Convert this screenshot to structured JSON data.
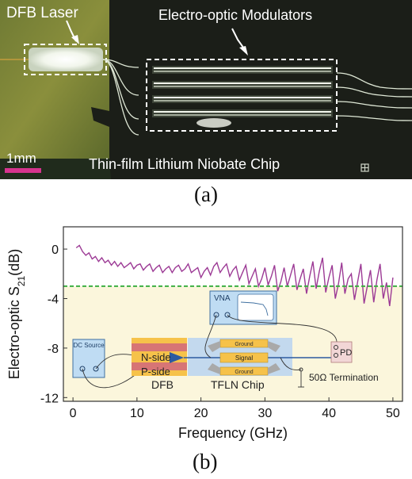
{
  "figure": {
    "caption_a": "(a)",
    "caption_b": "(b)"
  },
  "panel_a": {
    "label_laser": "DFB Laser",
    "label_modulators": "Electro-optic Modulators",
    "label_chip": "Thin-film Lithium Niobate Chip",
    "scale_bar": "1mm",
    "colors": {
      "background": "#1b1e18",
      "scale_bar": "#d6338e",
      "waveguide": "#e8f0e0"
    }
  },
  "panel_b": {
    "inset": {
      "vna": "VNA",
      "dc_source": "DC Source",
      "n_side": "N-side",
      "p_side": "P-side",
      "dfb": "DFB",
      "tfln": "TFLN Chip",
      "ground_top": "Ground",
      "signal": "Signal",
      "ground_bottom": "Ground",
      "pd": "PD",
      "termination": "50Ω Termination"
    }
  },
  "chart_data": {
    "type": "line",
    "xlabel": "Frequency (GHz)",
    "ylabel": "Electro-optic S21(dB)",
    "xlim": [
      -1.5,
      51.5
    ],
    "ylim": [
      -12.3,
      1.8
    ],
    "xticks": [
      0,
      10,
      20,
      30,
      40,
      50
    ],
    "yticks": [
      0,
      -4,
      -8,
      -12
    ],
    "reference_line": {
      "y": -3,
      "style": "dashed",
      "color": "#3cb043"
    },
    "shaded_region_below": {
      "y": -3,
      "color": "#fbf6dc"
    },
    "series": [
      {
        "color": "#9c3a95",
        "x": [
          0.5,
          1,
          1.5,
          2,
          2.5,
          3,
          3.5,
          4,
          4.5,
          5,
          5.5,
          6,
          6.5,
          7,
          7.5,
          8,
          8.5,
          9,
          9.5,
          10,
          10.5,
          11,
          11.5,
          12,
          12.5,
          13,
          13.5,
          14,
          14.5,
          15,
          15.5,
          16,
          16.5,
          17,
          17.5,
          18,
          18.5,
          19,
          19.5,
          20,
          20.5,
          21,
          21.5,
          22,
          22.5,
          23,
          23.5,
          24,
          24.5,
          25,
          25.5,
          26,
          26.5,
          27,
          27.5,
          28,
          28.5,
          29,
          29.5,
          30,
          30.5,
          31,
          31.5,
          32,
          32.5,
          33,
          33.5,
          34,
          34.5,
          35,
          35.5,
          36,
          36.5,
          37,
          37.5,
          38,
          38.5,
          39,
          39.5,
          40,
          40.5,
          41,
          41.5,
          42,
          42.5,
          43,
          43.5,
          44,
          44.5,
          45,
          45.5,
          46,
          46.5,
          47,
          47.5,
          48,
          48.5,
          49,
          49.5,
          50
        ],
        "y": [
          0.1,
          0.3,
          -0.2,
          -0.5,
          -0.3,
          -0.8,
          -0.6,
          -1.0,
          -0.7,
          -1.1,
          -0.9,
          -1.3,
          -1.0,
          -1.4,
          -1.1,
          -1.5,
          -1.3,
          -1.1,
          -1.6,
          -1.3,
          -1.2,
          -1.7,
          -1.4,
          -1.2,
          -1.8,
          -1.5,
          -1.3,
          -1.9,
          -1.6,
          -1.4,
          -1.9,
          -1.5,
          -1.3,
          -1.8,
          -1.6,
          -1.2,
          -1.9,
          -1.7,
          -1.5,
          -2.3,
          -1.8,
          -1.5,
          -2.1,
          -1.4,
          -1.1,
          -1.9,
          -1.5,
          -1.2,
          -2.2,
          -1.7,
          -1.4,
          -2.5,
          -1.9,
          -1.3,
          -2.8,
          -2.2,
          -1.6,
          -3.0,
          -2.4,
          -1.5,
          -2.9,
          -2.2,
          -1.3,
          -3.4,
          -2.6,
          -1.5,
          -3.0,
          -2.1,
          -1.2,
          -3.3,
          -2.4,
          -1.6,
          -3.6,
          -2.2,
          -1.0,
          -3.2,
          -1.8,
          -0.7,
          -3.5,
          -2.3,
          -1.3,
          -4.0,
          -2.8,
          -1.1,
          -3.6,
          -2.4,
          -2.0,
          -4.1,
          -2.6,
          -1.2,
          -4.4,
          -3.0,
          -1.7,
          -4.3,
          -2.5,
          -1.2,
          -4.0,
          -2.7,
          -4.6,
          -2.3
        ]
      }
    ]
  }
}
